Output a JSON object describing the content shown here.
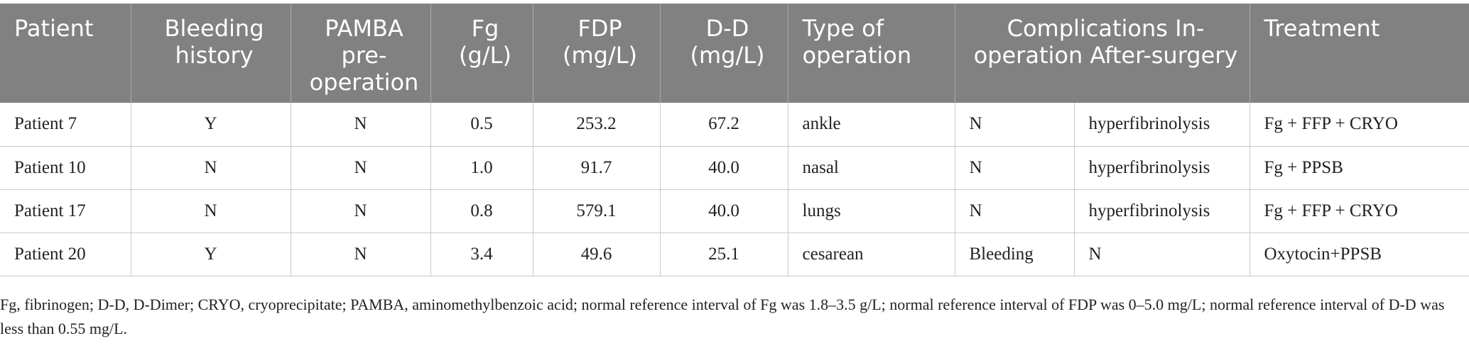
{
  "table": {
    "headers": [
      "Patient",
      "Bleeding history",
      "PAMBA pre-operation",
      "Fg (g/L)",
      "FDP (mg/L)",
      "D-D (mg/L)",
      "Type of operation",
      "Complications In-operation After-surgery",
      "Treatment"
    ],
    "rows": [
      [
        "Patient 7",
        "Y",
        "N",
        "0.5",
        "253.2",
        "67.2",
        "ankle",
        "N",
        "hyperfibrinolysis",
        "Fg + FFP + CRYO"
      ],
      [
        "Patient 10",
        "N",
        "N",
        "1.0",
        "91.7",
        "40.0",
        "nasal",
        "N",
        "hyperfibrinolysis",
        "Fg + PPSB"
      ],
      [
        "Patient 17",
        "N",
        "N",
        "0.8",
        "579.1",
        "40.0",
        "lungs",
        "N",
        "hyperfibrinolysis",
        "Fg + FFP + CRYO"
      ],
      [
        "Patient 20",
        "Y",
        "N",
        "3.4",
        "49.6",
        "25.1",
        "cesarean",
        "Bleeding",
        "N",
        "Oxytocin+PPSB"
      ]
    ]
  },
  "footnote": "Fg, fibrinogen; D-D, D-Dimer; CRYO, cryoprecipitate; PAMBA, aminomethylbenzoic acid; normal reference interval of Fg was 1.8–3.5 g/L; normal reference interval of FDP was 0–5.0 mg/L; normal reference interval of D-D was less than 0.55 mg/L.",
  "colors": {
    "header_bg": "#818181",
    "header_text": "#ffffff",
    "grid_line": "#c9c9c9"
  }
}
